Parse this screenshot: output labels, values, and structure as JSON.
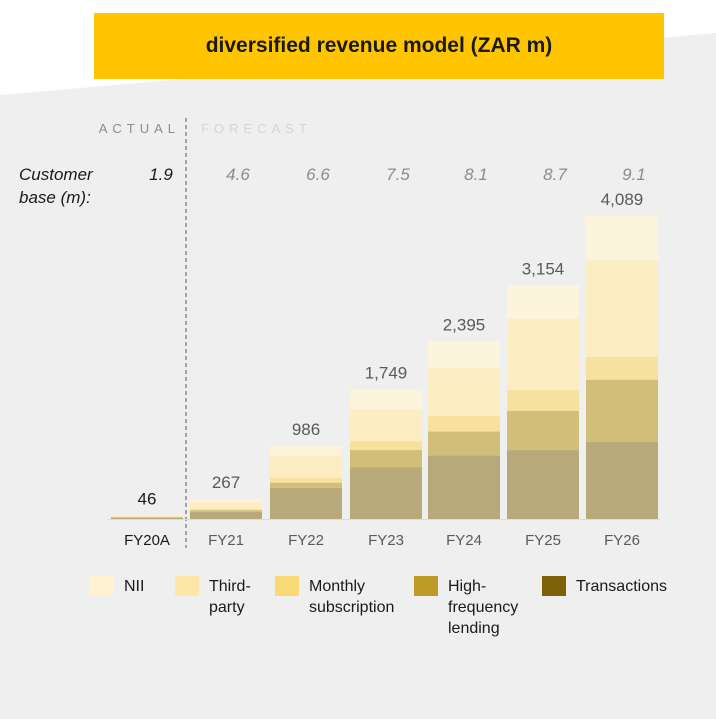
{
  "title": "diversified revenue model (ZAR m)",
  "header": {
    "actual_label": "ACTUAL",
    "forecast_label": "FORECAST",
    "customer_label": "Customer base (m):"
  },
  "chart_data": {
    "type": "bar",
    "stacked": true,
    "title": "diversified revenue model (ZAR m)",
    "categories": [
      "FY20A",
      "FY21",
      "FY22",
      "FY23",
      "FY24",
      "FY25",
      "FY26"
    ],
    "totals": [
      46,
      267,
      986,
      1749,
      2395,
      3154,
      4089
    ],
    "total_labels": [
      "46",
      "267",
      "986",
      "1,749",
      "2,395",
      "3,154",
      "4,089"
    ],
    "customer_base": [
      "1.9",
      "4.6",
      "6.6",
      "7.5",
      "8.1",
      "8.7",
      "9.1"
    ],
    "series": [
      {
        "name": "Transactions",
        "color": "#B7A97A",
        "values": [
          20,
          95,
          420,
          700,
          860,
          930,
          1040
        ]
      },
      {
        "name": "High-frequency lending",
        "color": "#D1BE78",
        "values": [
          5,
          25,
          70,
          230,
          320,
          530,
          840
        ]
      },
      {
        "name": "Monthly subscription",
        "color": "#F8E19F",
        "values": [
          5,
          15,
          66,
          119,
          215,
          280,
          309
        ]
      },
      {
        "name": "Third-party",
        "color": "#FCEDC2",
        "values": [
          10,
          100,
          300,
          430,
          640,
          964,
          1300
        ]
      },
      {
        "name": "NII",
        "color": "#FDF4DC",
        "values": [
          6,
          32,
          130,
          270,
          360,
          450,
          600
        ]
      }
    ],
    "legend": [
      {
        "label": "NII",
        "color": "#FEF3CE"
      },
      {
        "label": "Third-party",
        "color": "#FCE7A8"
      },
      {
        "label": "Monthly subscription",
        "color": "#F9D975"
      },
      {
        "label": "High-frequency lending",
        "color": "#BE9A26"
      },
      {
        "label": "Transactions",
        "color": "#7D6209"
      }
    ],
    "legend_position": "bottom",
    "grid": false,
    "ylim": [
      0,
      4200
    ],
    "actual_forecast_divider": "after FY20A"
  },
  "colors": {
    "accent": "#FFC600",
    "panel_background": "#EFEFEF",
    "muted_text": "#8C8C8C",
    "label_text": "#5A5A5A"
  }
}
